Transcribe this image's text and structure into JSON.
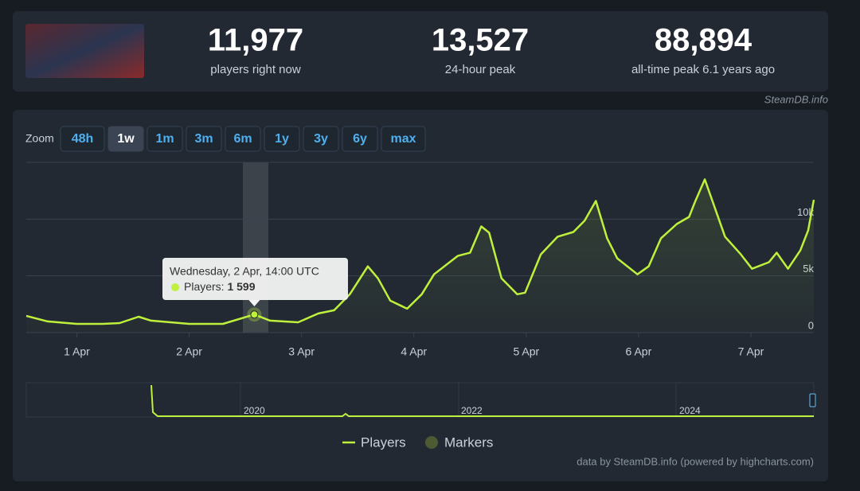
{
  "stats": [
    {
      "value": "11,977",
      "label": "players right now"
    },
    {
      "value": "13,527",
      "label": "24-hour peak"
    },
    {
      "value": "88,894",
      "label": "all-time peak 6.1 years ago"
    }
  ],
  "watermark": "SteamDB.info",
  "zoom": {
    "label": "Zoom",
    "buttons": [
      "48h",
      "1w",
      "1m",
      "3m",
      "6m",
      "1y",
      "3y",
      "6y",
      "max"
    ],
    "active": 1
  },
  "chart_data": {
    "type": "line",
    "x": [
      0.55,
      0.74,
      1.0,
      1.23,
      1.38,
      1.55,
      1.66,
      2.0,
      2.3,
      2.58,
      2.72,
      2.97,
      3.15,
      3.29,
      3.43,
      3.59,
      3.68,
      3.79,
      3.94,
      4.07,
      4.18,
      4.39,
      4.5,
      4.6,
      4.67,
      4.78,
      4.92,
      4.99,
      5.13,
      5.28,
      5.42,
      5.52,
      5.62,
      5.72,
      5.81,
      5.99,
      6.09,
      6.2,
      6.34,
      6.45,
      6.5,
      6.59,
      6.68,
      6.77,
      6.91,
      7.01,
      7.16,
      7.23,
      7.33,
      7.44,
      7.51,
      7.56
    ],
    "series": [
      {
        "name": "Players",
        "color": "#bff03c",
        "values": [
          1480,
          990,
          770,
          770,
          840,
          1400,
          1060,
          770,
          770,
          1599,
          1060,
          910,
          1690,
          1970,
          3380,
          5840,
          4790,
          2820,
          2110,
          3380,
          5140,
          6760,
          7040,
          9360,
          8800,
          4790,
          3380,
          3520,
          6900,
          8450,
          8870,
          9860,
          11600,
          8310,
          6550,
          5140,
          5840,
          8310,
          9570,
          10200,
          11470,
          13500,
          10980,
          8450,
          6900,
          5630,
          6200,
          7040,
          5630,
          7250,
          9010,
          11700
        ]
      }
    ],
    "markers": {
      "name": "Markers",
      "color": "#4d5a33"
    },
    "xlim": [
      0.55,
      7.56
    ],
    "xticks": [
      {
        "value": 1,
        "label": "1 Apr"
      },
      {
        "value": 2,
        "label": "2 Apr"
      },
      {
        "value": 3,
        "label": "3 Apr"
      },
      {
        "value": 4,
        "label": "4 Apr"
      },
      {
        "value": 5,
        "label": "5 Apr"
      },
      {
        "value": 6,
        "label": "6 Apr"
      },
      {
        "value": 7,
        "label": "7 Apr"
      }
    ],
    "ylim": [
      0,
      15000
    ],
    "yticks": [
      0,
      {
        "value": 5000,
        "label": "5k"
      },
      {
        "value": 10000,
        "label": "10k"
      }
    ],
    "grid": true,
    "tooltip": {
      "title": "Wednesday, 2 Apr, 14:00 UTC",
      "label": "Players:",
      "x": 2.58,
      "value": 1599,
      "value_label": "1 599"
    },
    "navigator": {
      "labels": [
        "2020",
        "2022",
        "2024"
      ]
    },
    "credits": "data by SteamDB.info (powered by highcharts.com)"
  }
}
